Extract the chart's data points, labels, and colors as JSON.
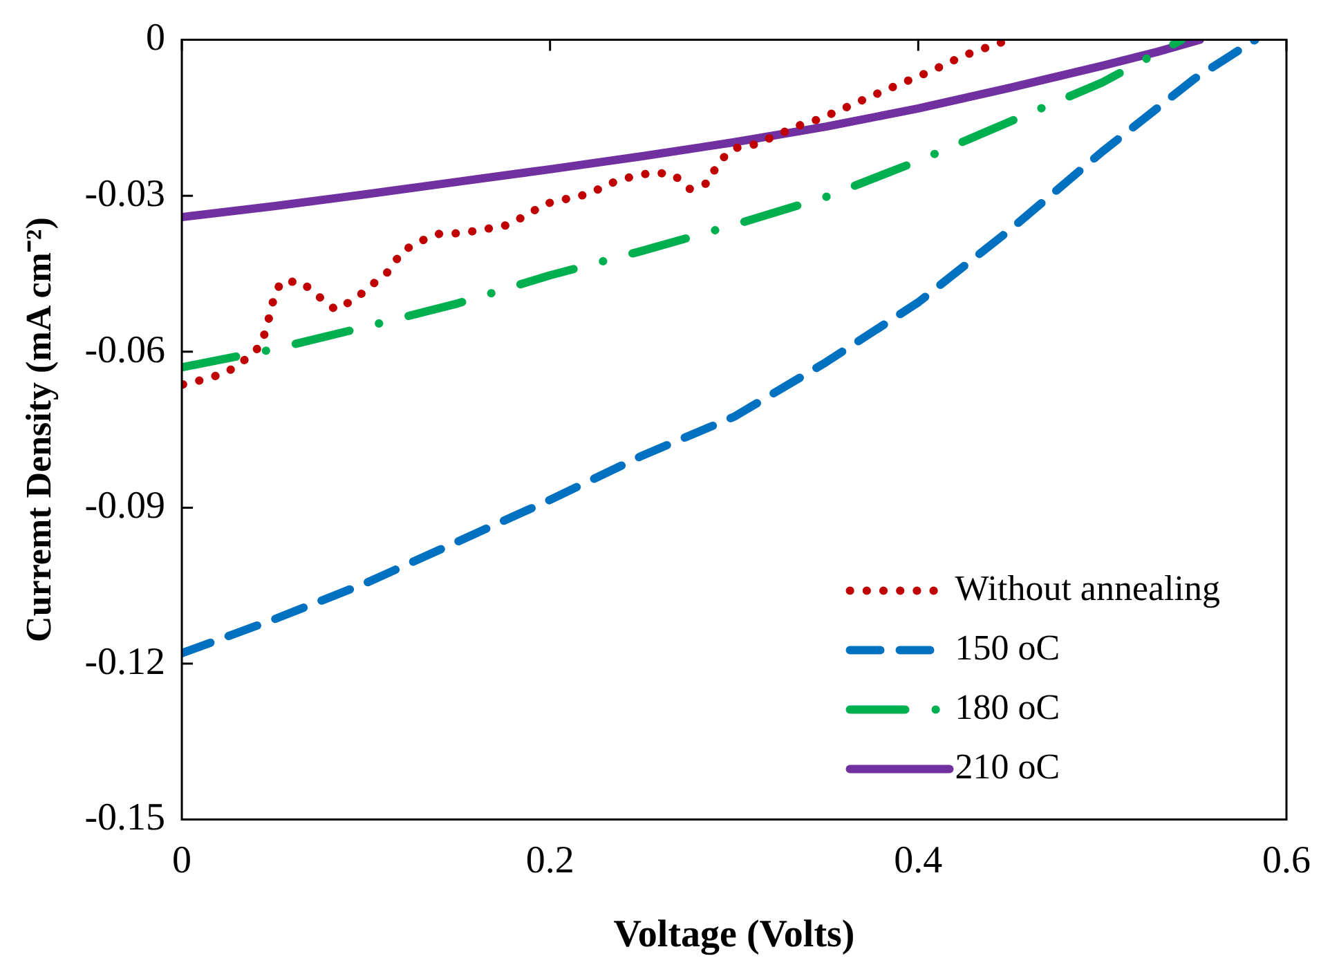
{
  "chart_data": {
    "type": "line",
    "xlabel": "Voltage (Volts)",
    "ylabel": "Curremt Density (mA cm⁻²)",
    "xlim": [
      0,
      0.6
    ],
    "xticks": [
      0,
      0.2,
      0.4,
      0.6
    ],
    "ylim": [
      -0.15,
      0
    ],
    "yticks": [
      -0.15,
      -0.12,
      -0.09,
      -0.06,
      -0.03,
      0
    ],
    "grid": false,
    "legend": "bottom right",
    "marker": "none",
    "series": [
      {
        "name": "Without annealing",
        "color": "#c00000",
        "line_style": "dotted",
        "x": [
          0.0006,
          0.0124,
          0.0243,
          0.034,
          0.043,
          0.0465,
          0.0493,
          0.0536,
          0.0647,
          0.0741,
          0.0834,
          0.094,
          0.1034,
          0.1128,
          0.1193,
          0.129,
          0.14,
          0.1517,
          0.1636,
          0.176,
          0.187,
          0.197,
          0.209,
          0.2215,
          0.232,
          0.2437,
          0.2559,
          0.267,
          0.276,
          0.286,
          0.2913,
          0.2996,
          0.3115,
          0.323,
          0.3343,
          0.3457,
          0.357,
          0.3684,
          0.382,
          0.407,
          0.425,
          0.449
        ],
        "values": [
          -0.0663,
          -0.0653,
          -0.064,
          -0.0616,
          -0.0588,
          -0.0547,
          -0.0506,
          -0.0466,
          -0.0465,
          -0.0493,
          -0.0519,
          -0.0499,
          -0.0471,
          -0.0444,
          -0.0408,
          -0.0388,
          -0.0373,
          -0.0372,
          -0.0365,
          -0.0357,
          -0.0338,
          -0.0316,
          -0.0306,
          -0.0296,
          -0.0277,
          -0.0264,
          -0.0255,
          -0.0259,
          -0.0287,
          -0.0275,
          -0.0236,
          -0.0209,
          -0.0201,
          -0.0184,
          -0.0166,
          -0.0153,
          -0.0136,
          -0.0118,
          -0.0097,
          -0.006,
          -0.003,
          0
        ]
      },
      {
        "name": "150 oC",
        "color": "#0070c0",
        "line_style": "dashed",
        "x": [
          0,
          0.05,
          0.1,
          0.15,
          0.2,
          0.25,
          0.3,
          0.35,
          0.4,
          0.45,
          0.5,
          0.55,
          0.583
        ],
        "values": [
          -0.118,
          -0.1115,
          -0.1045,
          -0.0965,
          -0.0885,
          -0.08,
          -0.0725,
          -0.062,
          -0.0505,
          -0.0365,
          -0.0215,
          -0.0075,
          0
        ]
      },
      {
        "name": "180 oC",
        "color": "#00b050",
        "line_style": "dashdot",
        "x": [
          0,
          0.05,
          0.1,
          0.15,
          0.2,
          0.25,
          0.3,
          0.35,
          0.4,
          0.45,
          0.5,
          0.543
        ],
        "values": [
          -0.063,
          -0.0595,
          -0.0552,
          -0.0507,
          -0.0453,
          -0.0406,
          -0.0356,
          -0.0302,
          -0.0233,
          -0.0157,
          -0.0082,
          0
        ]
      },
      {
        "name": "210 oC",
        "color": "#7030a0",
        "line_style": "solid",
        "x": [
          0,
          0.05,
          0.1,
          0.15,
          0.2,
          0.25,
          0.3,
          0.35,
          0.4,
          0.45,
          0.5,
          0.53,
          0.553
        ],
        "values": [
          -0.0341,
          -0.032,
          -0.0297,
          -0.0273,
          -0.0249,
          -0.0224,
          -0.0197,
          -0.0167,
          -0.0132,
          -0.0092,
          -0.005,
          -0.0023,
          0
        ]
      }
    ]
  }
}
